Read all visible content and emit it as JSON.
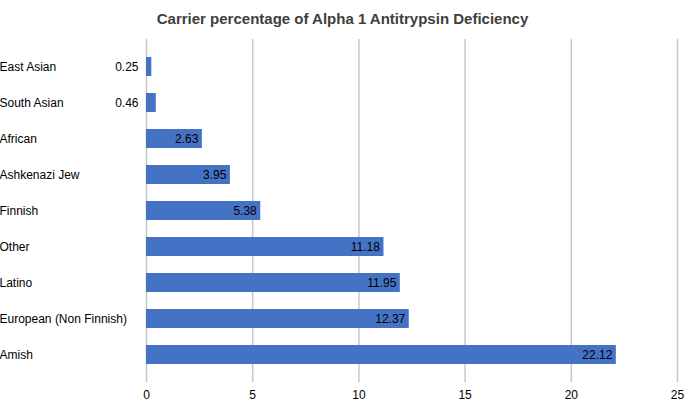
{
  "chart_data": {
    "type": "bar",
    "orientation": "horizontal",
    "title": "Carrier percentage of Alpha 1 Antitrypsin Deficiency",
    "categories": [
      "East Asian",
      "South Asian",
      "African",
      "Ashkenazi Jew",
      "Finnish",
      "Other",
      "Latino",
      "European (Non Finnish)",
      "Amish"
    ],
    "values": [
      0.25,
      0.46,
      2.63,
      3.95,
      5.38,
      11.18,
      11.95,
      12.37,
      22.12
    ],
    "color": "#4472c4",
    "xlim": [
      0,
      25
    ],
    "xticks": [
      0,
      5,
      10,
      15,
      20,
      25
    ],
    "grid": true,
    "data_labels": true
  }
}
